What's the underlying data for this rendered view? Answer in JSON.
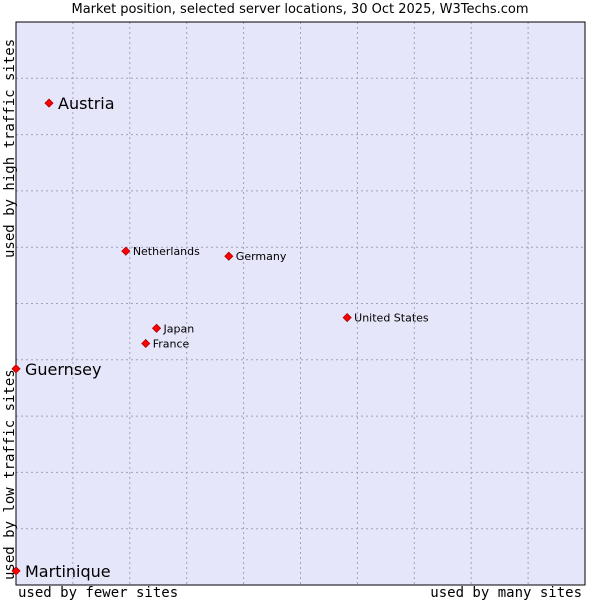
{
  "chart_data": {
    "type": "scatter",
    "title": "Market position, selected server locations, 30 Oct 2025, W3Techs.com",
    "xlabel_left": "used by fewer sites",
    "xlabel_right": "used by many sites",
    "ylabel_top": "used by high traffic sites",
    "ylabel_bottom": "used by low traffic sites",
    "xlim": [
      0,
      10
    ],
    "ylim": [
      0,
      10
    ],
    "grid": true,
    "points": [
      {
        "name": "Austria",
        "x": 0.58,
        "y": 8.56,
        "emphasis": true
      },
      {
        "name": "Netherlands",
        "x": 1.93,
        "y": 5.93,
        "emphasis": false
      },
      {
        "name": "Germany",
        "x": 3.74,
        "y": 5.84,
        "emphasis": false
      },
      {
        "name": "United States",
        "x": 5.82,
        "y": 4.75,
        "emphasis": false
      },
      {
        "name": "Japan",
        "x": 2.47,
        "y": 4.56,
        "emphasis": false
      },
      {
        "name": "France",
        "x": 2.28,
        "y": 4.29,
        "emphasis": false
      },
      {
        "name": "Guernsey",
        "x": 0.0,
        "y": 3.84,
        "emphasis": true
      },
      {
        "name": "Martinique",
        "x": 0.0,
        "y": 0.25,
        "emphasis": true
      }
    ]
  },
  "colors": {
    "plot_background": "#e6e6fa",
    "grid": "#a0a0c0",
    "frame": "#000000",
    "marker": "#ff0000",
    "marker_edge": "#aa0000"
  }
}
